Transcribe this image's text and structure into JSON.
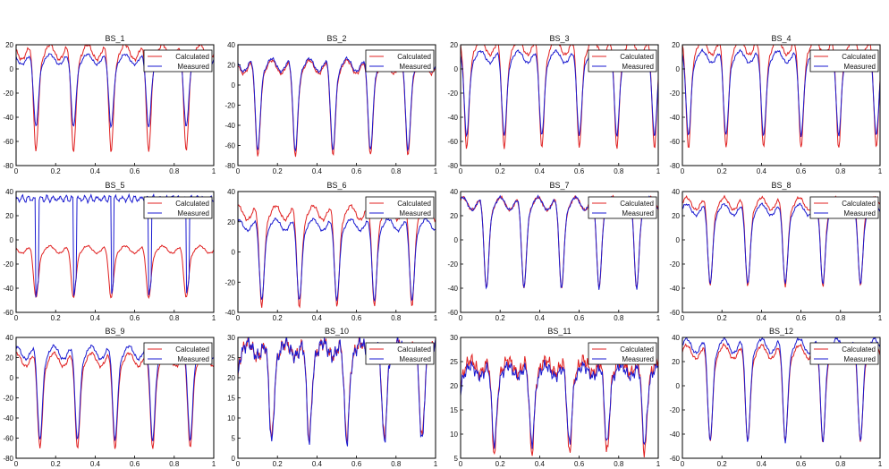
{
  "colors": {
    "calculated": "#e02020",
    "measured": "#1a1ad0",
    "axes": "#000000"
  },
  "legend": {
    "calculated": "Calculated",
    "measured": "Measured",
    "placement": "top-right"
  },
  "chart_data": [
    {
      "type": "line",
      "title": "BS_1",
      "xlim": [
        0,
        1
      ],
      "ylim": [
        -80,
        20
      ],
      "yticks": [
        -80,
        -60,
        -40,
        -20,
        0,
        20
      ],
      "xticks": [
        0.2,
        0.4,
        0.6,
        0.8,
        1
      ],
      "period": 0.19,
      "phase": 0.1,
      "calc_min": -68,
      "calc_max": 14,
      "meas_min": -48,
      "meas_max": 8,
      "series": [
        {
          "name": "Calculated",
          "shape": "sharp-dip periodic, min about -68, max about 14"
        },
        {
          "name": "Measured",
          "shape": "periodic, min about -48, max about 8"
        }
      ]
    },
    {
      "type": "line",
      "title": "BS_2",
      "xlim": [
        0,
        1
      ],
      "ylim": [
        -80,
        40
      ],
      "yticks": [
        -80,
        -60,
        -40,
        -20,
        0,
        20,
        40
      ],
      "xticks": [
        0.2,
        0.4,
        0.6,
        0.8,
        1
      ],
      "period": 0.19,
      "phase": 0.1,
      "calc_min": -70,
      "calc_max": 18,
      "meas_min": -65,
      "meas_max": 20,
      "series": [
        {
          "name": "Calculated",
          "shape": "periodic, min about -70"
        },
        {
          "name": "Measured",
          "shape": "periodic, min about -65"
        }
      ]
    },
    {
      "type": "line",
      "title": "BS_3",
      "xlim": [
        0,
        1
      ],
      "ylim": [
        -80,
        20
      ],
      "yticks": [
        -80,
        -60,
        -40,
        -20,
        0,
        20
      ],
      "xticks": [
        0.2,
        0.4,
        0.6,
        0.8,
        1
      ],
      "period": 0.19,
      "phase": 0.03,
      "calc_min": -65,
      "calc_max": 18,
      "meas_min": -55,
      "meas_max": 10,
      "series": [
        {
          "name": "Calculated",
          "shape": "periodic, min about -65"
        },
        {
          "name": "Measured",
          "shape": "periodic, min about -55"
        }
      ]
    },
    {
      "type": "line",
      "title": "BS_4",
      "xlim": [
        0,
        1
      ],
      "ylim": [
        -80,
        20
      ],
      "yticks": [
        -80,
        -60,
        -40,
        -20,
        0,
        20
      ],
      "xticks": [
        0.2,
        0.4,
        0.6,
        0.8,
        1
      ],
      "period": 0.19,
      "phase": 0.03,
      "calc_min": -65,
      "calc_max": 18,
      "meas_min": -55,
      "meas_max": 10,
      "series": [
        {
          "name": "Calculated",
          "shape": "periodic, min about -65"
        },
        {
          "name": "Measured",
          "shape": "periodic, min about -55"
        }
      ]
    },
    {
      "type": "line",
      "title": "BS_5",
      "xlim": [
        0,
        1
      ],
      "ylim": [
        -60,
        40
      ],
      "yticks": [
        -60,
        -40,
        -20,
        0,
        20,
        40
      ],
      "xticks": [
        0.2,
        0.4,
        0.6,
        0.8,
        1
      ],
      "period": 0.19,
      "phase": 0.1,
      "calc_min": -48,
      "calc_max": -8,
      "meas_min": -48,
      "meas_max": 34,
      "series": [
        {
          "name": "Calculated",
          "shape": "periodic, min about -48, max about -8"
        },
        {
          "name": "Measured",
          "shape": "square wave, plateau about 34, drops to about -48"
        }
      ]
    },
    {
      "type": "line",
      "title": "BS_6",
      "xlim": [
        0,
        1
      ],
      "ylim": [
        -40,
        40
      ],
      "yticks": [
        -40,
        -20,
        0,
        20,
        40
      ],
      "xticks": [
        0.2,
        0.4,
        0.6,
        0.8,
        1
      ],
      "period": 0.19,
      "phase": 0.12,
      "calc_min": -36,
      "calc_max": 26,
      "meas_min": -32,
      "meas_max": 18,
      "series": [
        {
          "name": "Calculated",
          "shape": "periodic, min about -36, max about 26"
        },
        {
          "name": "Measured",
          "shape": "periodic, min about -32, max about 18"
        }
      ]
    },
    {
      "type": "line",
      "title": "BS_7",
      "xlim": [
        0,
        1
      ],
      "ylim": [
        -60,
        40
      ],
      "yticks": [
        -60,
        -40,
        -20,
        0,
        20,
        40
      ],
      "xticks": [
        0.2,
        0.4,
        0.6,
        0.8,
        1
      ],
      "period": 0.19,
      "phase": 0.13,
      "calc_min": -40,
      "calc_max": 30,
      "meas_min": -40,
      "meas_max": 30,
      "series": [
        {
          "name": "Calculated",
          "shape": "periodic, min about -40, max about 30"
        },
        {
          "name": "Measured",
          "shape": "periodic, min about -40, max about 30"
        }
      ]
    },
    {
      "type": "line",
      "title": "BS_8",
      "xlim": [
        0,
        1
      ],
      "ylim": [
        -60,
        40
      ],
      "yticks": [
        -60,
        -40,
        -20,
        0,
        20,
        40
      ],
      "xticks": [
        0.2,
        0.4,
        0.6,
        0.8,
        1
      ],
      "period": 0.19,
      "phase": 0.14,
      "calc_min": -38,
      "calc_max": 30,
      "meas_min": -36,
      "meas_max": 25,
      "series": [
        {
          "name": "Calculated",
          "shape": "periodic, min about -38, max about 30"
        },
        {
          "name": "Measured",
          "shape": "periodic, min about -36, max about 25"
        }
      ]
    },
    {
      "type": "line",
      "title": "BS_9",
      "xlim": [
        0,
        1
      ],
      "ylim": [
        -80,
        40
      ],
      "yticks": [
        -80,
        -60,
        -40,
        -20,
        0,
        20,
        40
      ],
      "xticks": [
        0.2,
        0.4,
        0.6,
        0.8,
        1
      ],
      "period": 0.19,
      "phase": 0.12,
      "calc_min": -70,
      "calc_max": 18,
      "meas_min": -62,
      "meas_max": 25,
      "series": [
        {
          "name": "Calculated",
          "shape": "periodic, min about -70, max about 18"
        },
        {
          "name": "Measured",
          "shape": "periodic, min about -62, max about 25"
        }
      ]
    },
    {
      "type": "line",
      "title": "BS_10",
      "xlim": [
        0,
        1
      ],
      "ylim": [
        0,
        30
      ],
      "yticks": [
        0,
        5,
        10,
        15,
        20,
        25,
        30
      ],
      "xticks": [
        0.2,
        0.4,
        0.6,
        0.8,
        1
      ],
      "period": 0.19,
      "phase": 0.17,
      "calc_min": 5,
      "calc_max": 27,
      "meas_min": 4,
      "meas_max": 27,
      "series": [
        {
          "name": "Calculated",
          "shape": "noisy periodic, 5 to 27"
        },
        {
          "name": "Measured",
          "shape": "noisy periodic, 4 to 27"
        }
      ]
    },
    {
      "type": "line",
      "title": "BS_11",
      "xlim": [
        0,
        1
      ],
      "ylim": [
        5,
        30
      ],
      "yticks": [
        5,
        10,
        15,
        20,
        25,
        30
      ],
      "xticks": [
        0.2,
        0.4,
        0.6,
        0.8,
        1
      ],
      "period": 0.19,
      "phase": 0.17,
      "calc_min": 6,
      "calc_max": 24,
      "meas_min": 8,
      "meas_max": 23,
      "series": [
        {
          "name": "Calculated",
          "shape": "noisy periodic, 6 to 24"
        },
        {
          "name": "Measured",
          "shape": "noisy periodic, 8 to 23"
        }
      ]
    },
    {
      "type": "line",
      "title": "BS_12",
      "xlim": [
        0,
        1
      ],
      "ylim": [
        -60,
        40
      ],
      "yticks": [
        -60,
        -40,
        -20,
        0,
        20,
        40
      ],
      "xticks": [
        0.2,
        0.4,
        0.6,
        0.8,
        1
      ],
      "period": 0.19,
      "phase": 0.14,
      "calc_min": -46,
      "calc_max": 28,
      "meas_min": -46,
      "meas_max": 33,
      "series": [
        {
          "name": "Calculated",
          "shape": "periodic, min about -46, max about 28"
        },
        {
          "name": "Measured",
          "shape": "periodic, min about -46, max about 33"
        }
      ]
    }
  ]
}
